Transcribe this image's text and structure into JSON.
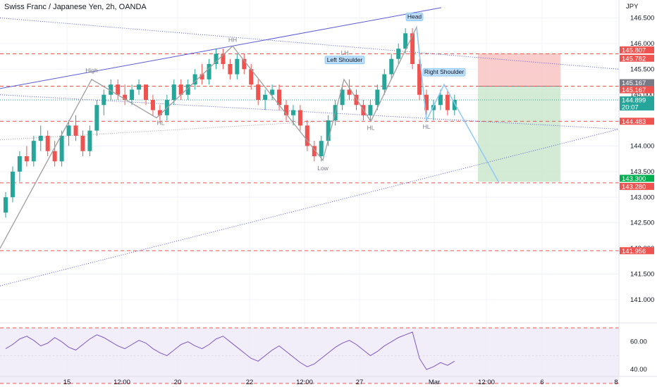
{
  "header": {
    "title": "Swiss Franc / Japanese Yen, 2h, OANDA"
  },
  "colors": {
    "up": "#26a69a",
    "down": "#ef5350",
    "rsi": "#7e57c2",
    "trend": "#5b5bd6",
    "pattern": "#90caf9",
    "wave": "#9e9e9e",
    "stop_zone": "#f9c0c0",
    "target_zone": "#c8e6c9"
  },
  "chart_data": [
    {
      "type": "candlestick",
      "title": "Swiss Franc / Japanese Yen, 2h, OANDA",
      "ylabel": "JPY",
      "ylim": [
        140.6,
        146.85
      ],
      "yticks": [
        "146.500",
        "146.000",
        "145.500",
        "145.000",
        "144.500",
        "144.000",
        "143.500",
        "143.000",
        "142.500",
        "142.000",
        "141.500",
        "141.000"
      ],
      "ytick_values": [
        146.5,
        146.0,
        145.5,
        145.0,
        144.5,
        144.0,
        143.5,
        143.0,
        142.5,
        142.0,
        141.5,
        141.0
      ],
      "xticks": [
        "15",
        "12:00",
        "20",
        "22",
        "12:00",
        "27",
        "Mar",
        "12:00",
        "6",
        "8"
      ],
      "price_tags": [
        {
          "label": "145.807",
          "value": 145.807,
          "kind": "red"
        },
        {
          "label": "145.782",
          "value": 145.782,
          "kind": "red"
        },
        {
          "label": "145.167",
          "value": 145.167,
          "kind": "gray"
        },
        {
          "label": "145.167",
          "value": 145.167,
          "kind": "red"
        },
        {
          "label": "144.899",
          "value": 144.899,
          "kind": "teal",
          "sub": "20:07"
        },
        {
          "label": "144.483",
          "value": 144.483,
          "kind": "red"
        },
        {
          "label": "143.300",
          "value": 143.3,
          "kind": "green"
        },
        {
          "label": "143.280",
          "value": 143.28,
          "kind": "red"
        },
        {
          "label": "141.956",
          "value": 141.956,
          "kind": "red"
        }
      ],
      "horizontal_levels": [
        145.8,
        145.167,
        144.483,
        143.28,
        141.956
      ],
      "current_price": 144.899,
      "trade": {
        "entry": 145.167,
        "stop": 145.807,
        "target": 143.3
      },
      "wave_points": [
        {
          "label": "High",
          "value": 145.3
        },
        {
          "label": "HL",
          "value": 144.55
        },
        {
          "label": "HH",
          "value": 145.9
        },
        {
          "label": "Low",
          "value": 143.72
        },
        {
          "label": "HL",
          "value": 144.48
        },
        {
          "label": "HL",
          "value": 144.5
        }
      ],
      "pattern_labels": [
        "Left Shoulder",
        "LH",
        "Head",
        "Right Shoulder"
      ],
      "pattern_values": {
        "left_shoulder": 145.3,
        "head": 146.32,
        "right_shoulder": 145.2,
        "neckline": 144.48
      },
      "candles": [
        [
          142.7,
          143.1,
          142.6,
          143.0
        ],
        [
          143.0,
          143.6,
          142.9,
          143.5
        ],
        [
          143.5,
          143.9,
          143.3,
          143.8
        ],
        [
          143.8,
          144.0,
          143.6,
          143.7
        ],
        [
          143.7,
          144.2,
          143.6,
          144.1
        ],
        [
          144.1,
          144.4,
          143.9,
          144.2
        ],
        [
          144.2,
          144.3,
          143.8,
          143.9
        ],
        [
          143.9,
          144.1,
          143.6,
          143.7
        ],
        [
          143.7,
          144.3,
          143.6,
          144.2
        ],
        [
          144.2,
          144.5,
          144.0,
          144.4
        ],
        [
          144.4,
          144.6,
          144.1,
          144.2
        ],
        [
          144.2,
          144.3,
          143.8,
          143.9
        ],
        [
          143.9,
          144.4,
          143.8,
          144.3
        ],
        [
          144.3,
          144.9,
          144.2,
          144.8
        ],
        [
          144.8,
          145.1,
          144.6,
          145.0
        ],
        [
          145.0,
          145.3,
          144.9,
          145.2
        ],
        [
          145.2,
          145.3,
          144.9,
          145.0
        ],
        [
          145.0,
          145.2,
          144.8,
          144.9
        ],
        [
          144.9,
          145.2,
          144.8,
          145.1
        ],
        [
          145.1,
          145.3,
          145.0,
          145.2
        ],
        [
          145.2,
          145.2,
          144.8,
          144.9
        ],
        [
          144.9,
          145.0,
          144.6,
          144.7
        ],
        [
          144.7,
          144.8,
          144.5,
          144.6
        ],
        [
          144.6,
          145.0,
          144.5,
          144.9
        ],
        [
          144.9,
          145.3,
          144.8,
          145.2
        ],
        [
          145.2,
          145.3,
          144.9,
          145.0
        ],
        [
          145.0,
          145.3,
          144.9,
          145.2
        ],
        [
          145.2,
          145.5,
          145.1,
          145.4
        ],
        [
          145.4,
          145.6,
          145.2,
          145.3
        ],
        [
          145.3,
          145.7,
          145.2,
          145.6
        ],
        [
          145.6,
          145.9,
          145.5,
          145.8
        ],
        [
          145.8,
          145.9,
          145.5,
          145.6
        ],
        [
          145.6,
          145.7,
          145.3,
          145.4
        ],
        [
          145.4,
          145.8,
          145.3,
          145.7
        ],
        [
          145.7,
          145.8,
          145.4,
          145.5
        ],
        [
          145.5,
          145.6,
          145.1,
          145.2
        ],
        [
          145.2,
          145.3,
          144.8,
          144.9
        ],
        [
          144.9,
          145.1,
          144.7,
          145.0
        ],
        [
          145.0,
          145.2,
          144.9,
          145.1
        ],
        [
          145.1,
          145.2,
          144.7,
          144.8
        ],
        [
          144.8,
          144.9,
          144.5,
          144.6
        ],
        [
          144.6,
          144.8,
          144.4,
          144.7
        ],
        [
          144.7,
          144.8,
          144.3,
          144.4
        ],
        [
          144.4,
          144.5,
          143.9,
          144.0
        ],
        [
          144.0,
          144.1,
          143.7,
          143.8
        ],
        [
          143.8,
          144.2,
          143.7,
          144.1
        ],
        [
          144.1,
          144.6,
          144.0,
          144.5
        ],
        [
          144.5,
          144.9,
          144.4,
          144.8
        ],
        [
          144.8,
          145.2,
          144.7,
          145.1
        ],
        [
          145.1,
          145.3,
          144.9,
          145.0
        ],
        [
          145.0,
          145.1,
          144.7,
          144.8
        ],
        [
          144.8,
          144.9,
          144.5,
          144.6
        ],
        [
          144.6,
          144.9,
          144.5,
          144.8
        ],
        [
          144.8,
          145.2,
          144.7,
          145.1
        ],
        [
          145.1,
          145.5,
          145.0,
          145.4
        ],
        [
          145.4,
          145.8,
          145.3,
          145.7
        ],
        [
          145.7,
          146.0,
          145.6,
          145.9
        ],
        [
          145.9,
          146.3,
          145.8,
          146.2
        ],
        [
          146.2,
          146.3,
          145.5,
          145.6
        ],
        [
          145.6,
          145.7,
          144.9,
          145.0
        ],
        [
          145.0,
          145.1,
          144.6,
          144.7
        ],
        [
          144.7,
          144.9,
          144.5,
          144.8
        ],
        [
          144.8,
          145.1,
          144.7,
          145.0
        ],
        [
          145.0,
          145.1,
          144.6,
          144.7
        ],
        [
          144.7,
          145.0,
          144.6,
          144.9
        ]
      ]
    },
    {
      "type": "line",
      "title": "",
      "ylim": [
        35,
        72
      ],
      "yticks": [
        "60.00",
        "40.00"
      ],
      "ytick_values": [
        60,
        40
      ],
      "bands": [
        70,
        30
      ],
      "values": [
        55,
        58,
        62,
        64,
        61,
        57,
        59,
        63,
        60,
        56,
        54,
        58,
        62,
        65,
        63,
        60,
        57,
        55,
        58,
        61,
        59,
        55,
        52,
        50,
        54,
        58,
        60,
        57,
        55,
        58,
        62,
        64,
        60,
        56,
        52,
        48,
        46,
        50,
        54,
        57,
        53,
        49,
        45,
        42,
        44,
        48,
        52,
        56,
        59,
        61,
        58,
        54,
        50,
        53,
        57,
        60,
        63,
        65,
        67,
        48,
        40,
        42,
        45,
        43,
        46
      ]
    }
  ]
}
